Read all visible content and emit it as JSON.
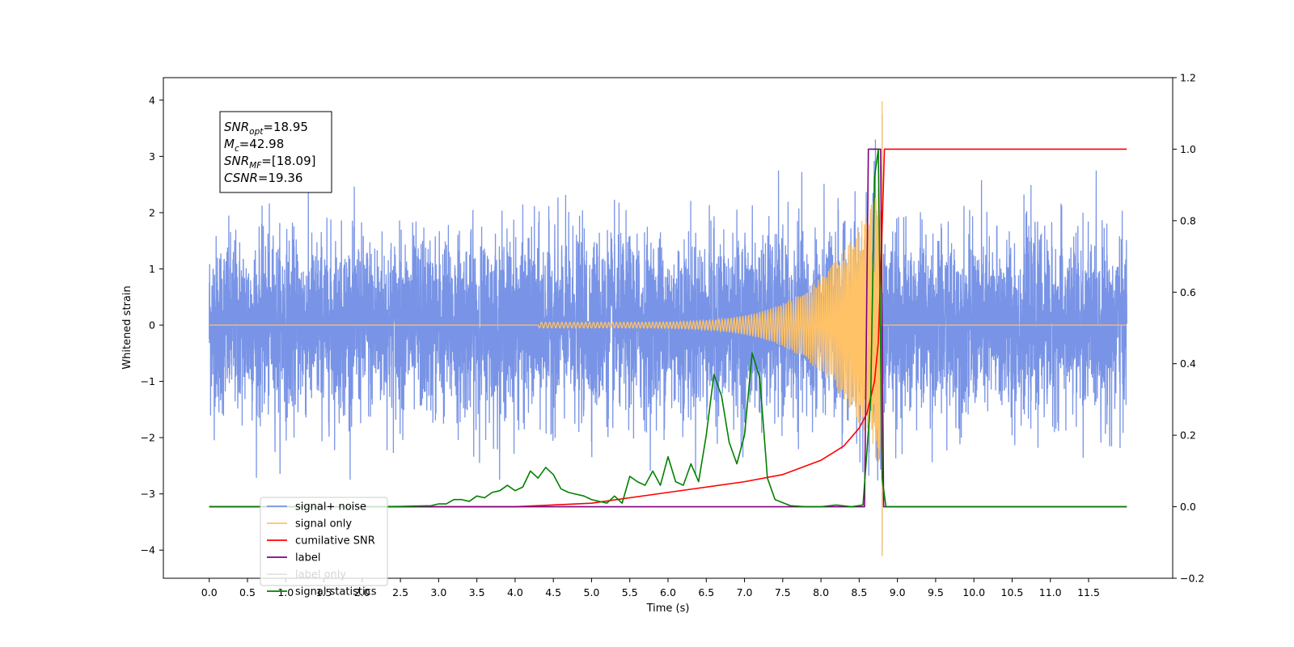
{
  "chart_data": {
    "type": "line",
    "xlabel": "Time (s)",
    "ylabel": "Whitened strain",
    "xlim": [
      -0.6,
      12.6
    ],
    "ylim": [
      -4.5,
      4.4
    ],
    "y2lim": [
      -0.2,
      1.2
    ],
    "x_ticks": [
      "0.0",
      "0.5",
      "1.0",
      "1.5",
      "2.0",
      "2.5",
      "3.0",
      "3.5",
      "4.0",
      "4.5",
      "5.0",
      "5.5",
      "6.0",
      "6.5",
      "7.0",
      "7.5",
      "8.0",
      "8.5",
      "9.0",
      "9.5",
      "10.0",
      "10.5",
      "11.0",
      "11.5"
    ],
    "y_ticks": [
      "4",
      "3",
      "2",
      "1",
      "0",
      "−1",
      "−2",
      "−3",
      "−4"
    ],
    "y2_ticks": [
      "1.2",
      "1.0",
      "0.8",
      "0.6",
      "0.4",
      "0.2",
      "0.0",
      "−0.2"
    ],
    "annotation": {
      "lines": [
        {
          "name": "SNR",
          "sub": "opt",
          "value": "=18.95"
        },
        {
          "name": "M",
          "sub": "c",
          "value": "=42.98"
        },
        {
          "name": "SNR",
          "sub": "MF",
          "value": "=[18.09]"
        },
        {
          "name": "CSNR",
          "sub": "",
          "value": "=19.36"
        }
      ]
    },
    "legend": {
      "location": "lower-left",
      "entries": [
        "signal+ noise",
        "signal only",
        "cumilative SNR",
        "label",
        "label only",
        "signal statistics"
      ]
    },
    "series": [
      {
        "name": "signal+ noise",
        "axis": "left",
        "color": "#7994e6",
        "style": "noise",
        "x_range": [
          0.0,
          12.0
        ],
        "amplitude_sigma": 0.78,
        "peak_max": 3.75,
        "peak_min": -4.1,
        "peak_x": 8.8
      },
      {
        "name": "signal only",
        "axis": "left",
        "color": "#ffc266",
        "style": "chirp",
        "merger_x": 8.8,
        "peak_max": 3.98,
        "peak_min": -4.1
      },
      {
        "name": "cumilative SNR",
        "axis": "right",
        "color": "#ff0000",
        "points": [
          [
            0.0,
            0.0
          ],
          [
            4.0,
            0.0
          ],
          [
            5.0,
            0.01
          ],
          [
            6.0,
            0.04
          ],
          [
            7.0,
            0.07
          ],
          [
            7.5,
            0.09
          ],
          [
            8.0,
            0.13
          ],
          [
            8.3,
            0.17
          ],
          [
            8.5,
            0.22
          ],
          [
            8.6,
            0.26
          ],
          [
            8.7,
            0.35
          ],
          [
            8.75,
            0.46
          ],
          [
            8.8,
            0.78
          ],
          [
            8.83,
            1.0
          ],
          [
            12.0,
            1.0
          ]
        ]
      },
      {
        "name": "label",
        "axis": "right",
        "color": "#800080",
        "points": [
          [
            0.0,
            0.0
          ],
          [
            8.57,
            0.0
          ],
          [
            8.62,
            1.0
          ],
          [
            8.78,
            1.0
          ],
          [
            8.82,
            0.0
          ],
          [
            12.0,
            0.0
          ]
        ]
      },
      {
        "name": "label only",
        "axis": "right",
        "color": "#ffffff",
        "points": []
      },
      {
        "name": "signal statistics",
        "axis": "right",
        "color": "#008000",
        "points": [
          [
            0.0,
            0.0
          ],
          [
            1.0,
            0.0
          ],
          [
            2.0,
            0.0
          ],
          [
            2.5,
            0.001
          ],
          [
            2.9,
            0.003
          ],
          [
            3.0,
            0.008
          ],
          [
            3.1,
            0.008
          ],
          [
            3.2,
            0.02
          ],
          [
            3.3,
            0.02
          ],
          [
            3.4,
            0.015
          ],
          [
            3.5,
            0.03
          ],
          [
            3.6,
            0.025
          ],
          [
            3.7,
            0.04
          ],
          [
            3.8,
            0.045
          ],
          [
            3.9,
            0.06
          ],
          [
            4.0,
            0.045
          ],
          [
            4.1,
            0.055
          ],
          [
            4.2,
            0.1
          ],
          [
            4.3,
            0.08
          ],
          [
            4.4,
            0.11
          ],
          [
            4.5,
            0.09
          ],
          [
            4.6,
            0.05
          ],
          [
            4.7,
            0.04
          ],
          [
            4.8,
            0.035
          ],
          [
            4.9,
            0.03
          ],
          [
            5.0,
            0.02
          ],
          [
            5.2,
            0.01
          ],
          [
            5.3,
            0.03
          ],
          [
            5.4,
            0.01
          ],
          [
            5.5,
            0.085
          ],
          [
            5.6,
            0.07
          ],
          [
            5.7,
            0.06
          ],
          [
            5.8,
            0.1
          ],
          [
            5.9,
            0.06
          ],
          [
            6.0,
            0.14
          ],
          [
            6.1,
            0.07
          ],
          [
            6.2,
            0.06
          ],
          [
            6.3,
            0.12
          ],
          [
            6.4,
            0.07
          ],
          [
            6.5,
            0.2
          ],
          [
            6.6,
            0.37
          ],
          [
            6.7,
            0.31
          ],
          [
            6.8,
            0.18
          ],
          [
            6.9,
            0.12
          ],
          [
            7.0,
            0.2
          ],
          [
            7.1,
            0.43
          ],
          [
            7.2,
            0.36
          ],
          [
            7.3,
            0.08
          ],
          [
            7.4,
            0.02
          ],
          [
            7.6,
            0.003
          ],
          [
            7.8,
            0.0
          ],
          [
            8.0,
            0.0
          ],
          [
            8.2,
            0.005
          ],
          [
            8.4,
            0.0
          ],
          [
            8.55,
            0.005
          ],
          [
            8.65,
            0.3
          ],
          [
            8.7,
            0.92
          ],
          [
            8.75,
            1.0
          ],
          [
            8.8,
            0.08
          ],
          [
            8.85,
            0.0
          ],
          [
            12.0,
            0.0
          ]
        ]
      }
    ]
  }
}
